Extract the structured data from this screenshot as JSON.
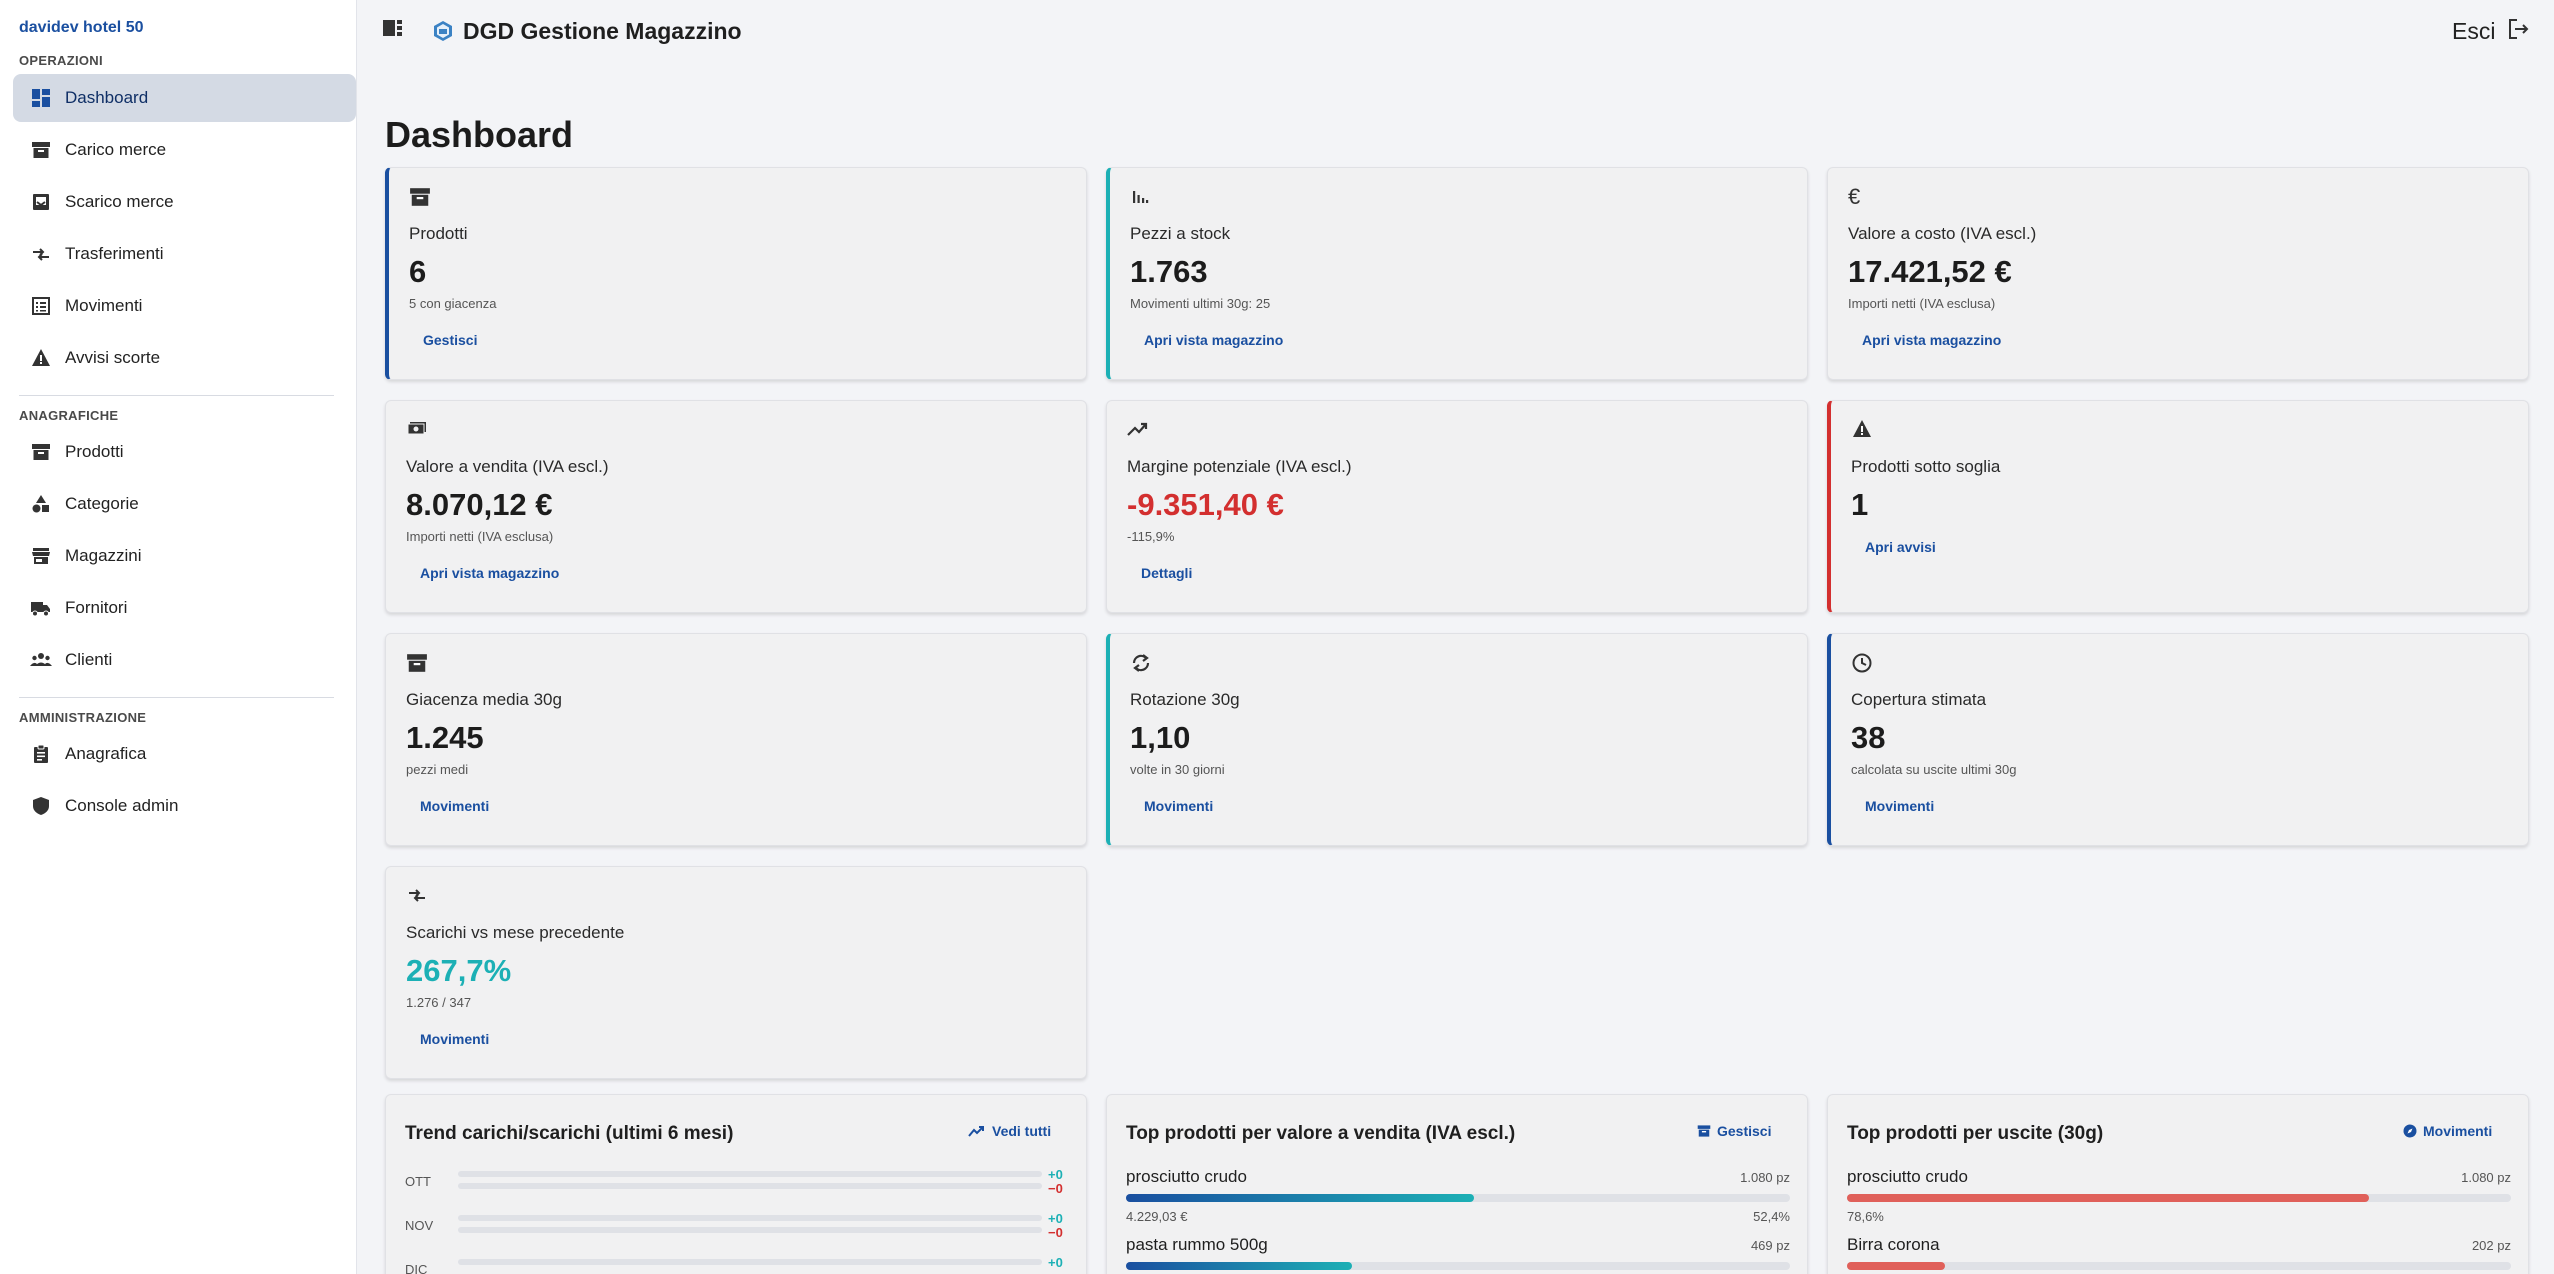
{
  "sidebar": {
    "brand": "davidev hotel 50",
    "sections": {
      "operazioni": "OPERAZIONI",
      "anagrafiche": "ANAGRAFICHE",
      "amministrazione": "AMMINISTRAZIONE"
    },
    "items": {
      "dashboard": "Dashboard",
      "carico": "Carico merce",
      "scarico": "Scarico merce",
      "trasferimenti": "Trasferimenti",
      "movimenti": "Movimenti",
      "avvisi": "Avvisi scorte",
      "prodotti": "Prodotti",
      "categorie": "Categorie",
      "magazzini": "Magazzini",
      "fornitori": "Fornitori",
      "clienti": "Clienti",
      "anagrafica": "Anagrafica",
      "console": "Console admin"
    }
  },
  "header": {
    "title": "DGD Gestione Magazzino",
    "exit_label": "Esci"
  },
  "page": {
    "title": "Dashboard"
  },
  "cards": {
    "prodotti": {
      "label": "Prodotti",
      "value": "6",
      "sub": "5 con giacenza",
      "link": "Gestisci"
    },
    "pezzi": {
      "label": "Pezzi a stock",
      "value": "1.763",
      "sub": "Movimenti ultimi 30g: 25",
      "link": "Apri vista magazzino"
    },
    "costo": {
      "label": "Valore a costo (IVA escl.)",
      "value": "17.421,52 €",
      "sub": "Importi netti (IVA esclusa)",
      "link": "Apri vista magazzino"
    },
    "vendita": {
      "label": "Valore a vendita (IVA escl.)",
      "value": "8.070,12 €",
      "sub": "Importi netti (IVA esclusa)",
      "link": "Apri vista magazzino"
    },
    "margine": {
      "label": "Margine potenziale (IVA escl.)",
      "value": "-9.351,40 €",
      "sub": "-115,9%",
      "link": "Dettagli"
    },
    "soglia": {
      "label": "Prodotti sotto soglia",
      "value": "1",
      "link": "Apri avvisi"
    },
    "giacenza": {
      "label": "Giacenza media 30g",
      "value": "1.245",
      "sub": "pezzi medi",
      "link": "Movimenti"
    },
    "rotazione": {
      "label": "Rotazione 30g",
      "value": "1,10",
      "sub": "volte in 30 giorni",
      "link": "Movimenti"
    },
    "copertura": {
      "label": "Copertura stimata",
      "value": "38",
      "sub": "calcolata su uscite ultimi 30g",
      "link": "Movimenti"
    },
    "scarichi": {
      "label": "Scarichi vs mese precedente",
      "value": "267,7%",
      "sub": "1.276 / 347",
      "link": "Movimenti"
    }
  },
  "trend": {
    "title": "Trend carichi/scarichi (ultimi 6 mesi)",
    "action": "Vedi tutti",
    "rows": [
      {
        "month": "OTT",
        "carichi": "+0",
        "scarichi": "−0"
      },
      {
        "month": "NOV",
        "carichi": "+0",
        "scarichi": "−0"
      },
      {
        "month": "DIC",
        "carichi": "+0",
        "scarichi": ""
      }
    ]
  },
  "top_vendita": {
    "title": "Top prodotti per valore a vendita (IVA escl.)",
    "action": "Gestisci",
    "items": [
      {
        "name": "prosciutto crudo",
        "qty": "1.080 pz",
        "value": "4.229,03 €",
        "pct": "52,4%",
        "fill": 0.524
      },
      {
        "name": "pasta rummo 500g",
        "qty": "469 pz",
        "value": "",
        "pct": "",
        "fill": 0.34
      }
    ]
  },
  "top_uscite": {
    "title": "Top prodotti per uscite (30g)",
    "action": "Movimenti",
    "items": [
      {
        "name": "prosciutto crudo",
        "qty": "1.080 pz",
        "value": "78,6%",
        "fill": 0.786
      },
      {
        "name": "Birra corona",
        "qty": "202 pz",
        "value": "",
        "fill": 0.147
      }
    ]
  },
  "colors": {
    "primary": "#1a4fa0",
    "teal": "#1cb0b5",
    "danger": "#d32f2f",
    "bar_red": "#e0605a"
  },
  "icons": {
    "dashboard": "dashboard-icon",
    "carico": "inventory-box-icon",
    "scarico": "archive-out-icon",
    "trasferimenti": "compare-arrows-icon",
    "movimenti": "list-icon",
    "avvisi": "warning-icon",
    "prodotti": "inventory-icon",
    "categorie": "category-shapes-icon",
    "magazzini": "store-icon",
    "fornitori": "truck-icon",
    "clienti": "people-icon",
    "anagrafica": "clipboard-icon",
    "console": "shield-icon"
  }
}
